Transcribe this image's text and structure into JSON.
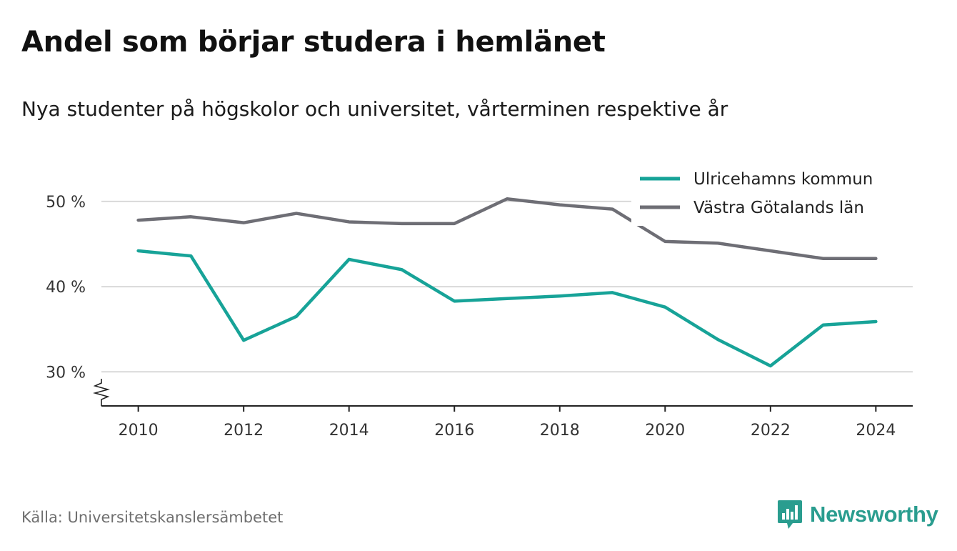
{
  "header": {
    "title": "Andel som börjar studera i hemlänet",
    "subtitle": "Nya studenter på högskolor och universitet, vårterminen respektive år"
  },
  "footer": {
    "source": "Källa: Universitetskanslersämbetet",
    "brand": "Newsworthy"
  },
  "colors": {
    "ulricehamn": "#17a398",
    "vastra_gotaland": "#6e6e75",
    "grid": "#d9d9d9",
    "axis": "#222222",
    "brand": "#2a9d8f"
  },
  "icons": {
    "logo": "bar-chart-speech-bubble-icon",
    "axis_break": "zigzag-axis-break-icon"
  },
  "chart_data": {
    "type": "line",
    "x": [
      2010,
      2011,
      2012,
      2013,
      2014,
      2015,
      2016,
      2017,
      2018,
      2019,
      2020,
      2021,
      2022,
      2023,
      2024
    ],
    "series": [
      {
        "name": "Ulricehamns kommun",
        "color": "#17a398",
        "values": [
          44.2,
          43.6,
          33.7,
          36.5,
          43.2,
          42.0,
          38.3,
          38.6,
          38.9,
          39.3,
          37.6,
          33.8,
          30.7,
          35.5,
          35.9
        ]
      },
      {
        "name": "Västra Götalands län",
        "color": "#6e6e75",
        "values": [
          47.8,
          48.2,
          47.5,
          48.6,
          47.6,
          47.4,
          47.4,
          50.3,
          49.6,
          49.1,
          45.3,
          45.1,
          44.2,
          43.3,
          43.3
        ]
      }
    ],
    "yticks": [
      30,
      40,
      50
    ],
    "ytick_labels": [
      "30 %",
      "40 %",
      "50 %"
    ],
    "xticks": [
      2010,
      2012,
      2014,
      2016,
      2018,
      2020,
      2022,
      2024
    ],
    "xtick_labels": [
      "2010",
      "2012",
      "2014",
      "2016",
      "2018",
      "2020",
      "2022",
      "2024"
    ],
    "ylim": [
      26,
      52
    ],
    "xlim": [
      2009.3,
      2024.7
    ],
    "grid": true,
    "legend_position": "top-right",
    "axis_break": true
  }
}
